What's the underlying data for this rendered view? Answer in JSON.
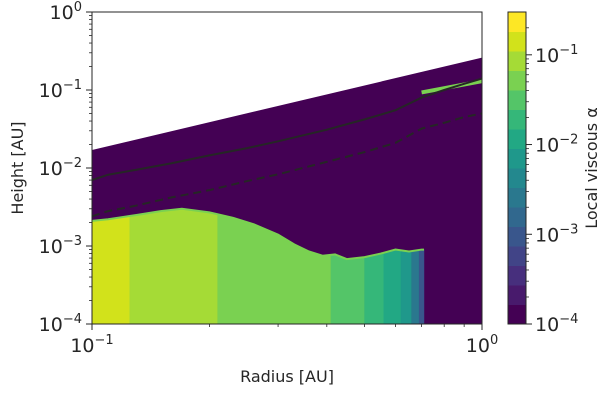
{
  "chart_data": {
    "type": "heatmap",
    "title": "",
    "xlabel": "Radius [AU]",
    "ylabel": "Height [AU]",
    "xscale": "log",
    "yscale": "log",
    "xlim": [
      0.1,
      1
    ],
    "ylim": [
      0.0001,
      1
    ],
    "x_ticks": [
      {
        "value": 0.1,
        "base": "10",
        "exp": "−1"
      },
      {
        "value": 1,
        "base": "10",
        "exp": "0"
      }
    ],
    "y_ticks": [
      {
        "value": 1,
        "base": "10",
        "exp": "0"
      },
      {
        "value": 0.1,
        "base": "10",
        "exp": "−1"
      },
      {
        "value": 0.01,
        "base": "10",
        "exp": "−2"
      },
      {
        "value": 0.001,
        "base": "10",
        "exp": "−3"
      },
      {
        "value": 0.0001,
        "base": "10",
        "exp": "−4"
      }
    ],
    "colorbar": {
      "label": "Local viscous α",
      "scale": "log",
      "range": [
        0.0001,
        0.3
      ],
      "ticks": [
        {
          "value": 0.1,
          "base": "10",
          "exp": "−1"
        },
        {
          "value": 0.01,
          "base": "10",
          "exp": "−2"
        },
        {
          "value": 0.001,
          "base": "10",
          "exp": "−3"
        },
        {
          "value": 0.0001,
          "base": "10",
          "exp": "−4"
        }
      ],
      "colors": [
        "#440154",
        "#481a6c",
        "#472f7d",
        "#414487",
        "#39568c",
        "#31688e",
        "#2a788e",
        "#23888e",
        "#1f988b",
        "#22a884",
        "#35b779",
        "#54c568",
        "#7ad151",
        "#a5db36",
        "#d2e21b",
        "#fde725"
      ]
    },
    "domain_outline": {
      "x": [
        0.1,
        1,
        1,
        0.1
      ],
      "y": [
        0.0001,
        0.0001,
        0.26,
        0.017
      ],
      "color": "#440154"
    },
    "series": [
      {
        "style": "solid",
        "color": "#262626",
        "x": [
          0.1,
          0.11,
          0.13,
          0.16,
          0.2,
          0.25,
          0.3,
          0.4,
          0.5,
          0.6,
          0.7,
          0.8,
          0.9,
          1.0
        ],
        "y": [
          0.007,
          0.0082,
          0.0095,
          0.0115,
          0.0145,
          0.018,
          0.022,
          0.031,
          0.042,
          0.055,
          0.08,
          0.1,
          0.12,
          0.14
        ]
      },
      {
        "style": "dashed",
        "color": "#262626",
        "x": [
          0.1,
          0.11,
          0.13,
          0.16,
          0.2,
          0.25,
          0.3,
          0.4,
          0.5,
          0.6,
          0.7,
          0.8,
          0.9,
          1.0
        ],
        "y": [
          0.0024,
          0.0028,
          0.0033,
          0.0042,
          0.0052,
          0.0068,
          0.0083,
          0.012,
          0.016,
          0.021,
          0.032,
          0.038,
          0.045,
          0.05
        ]
      }
    ],
    "regions": [
      {
        "colorIndex": 14,
        "x_range": [
          0.1,
          0.125
        ],
        "y_top": "surface"
      },
      {
        "colorIndex": 13,
        "x_range": [
          0.125,
          0.21
        ],
        "y_top": "surface"
      },
      {
        "colorIndex": 12,
        "x_range": [
          0.21,
          0.41
        ],
        "y_top": "surface"
      },
      {
        "colorIndex": 11,
        "x_range": [
          0.41,
          0.5
        ],
        "y_top": "surface"
      },
      {
        "colorIndex": 10,
        "x_range": [
          0.5,
          0.56
        ],
        "y_top": "surface"
      },
      {
        "colorIndex": 9,
        "x_range": [
          0.56,
          0.62
        ],
        "y_top": "surface"
      },
      {
        "colorIndex": 8,
        "x_range": [
          0.62,
          0.66
        ],
        "y_top": "surface"
      },
      {
        "colorIndex": 6,
        "x_range": [
          0.66,
          0.69
        ],
        "y_top": "surface"
      },
      {
        "colorIndex": 4,
        "x_range": [
          0.69,
          0.71
        ],
        "y_top": "surface"
      }
    ],
    "surface": {
      "x": [
        0.1,
        0.11,
        0.13,
        0.15,
        0.17,
        0.2,
        0.23,
        0.26,
        0.3,
        0.33,
        0.36,
        0.39,
        0.42,
        0.45,
        0.5,
        0.55,
        0.6,
        0.65,
        0.7,
        0.71
      ],
      "y": [
        0.0021,
        0.0022,
        0.0025,
        0.0028,
        0.003,
        0.0027,
        0.0023,
        0.0019,
        0.0014,
        0.00105,
        0.00085,
        0.00075,
        0.00078,
        0.00068,
        0.00072,
        0.0008,
        0.0009,
        0.00085,
        0.0009,
        0.0009
      ]
    },
    "upper_streak": {
      "x": [
        0.7,
        1.0
      ],
      "y": [
        0.093,
        0.13
      ],
      "color": "#7ad151"
    }
  }
}
